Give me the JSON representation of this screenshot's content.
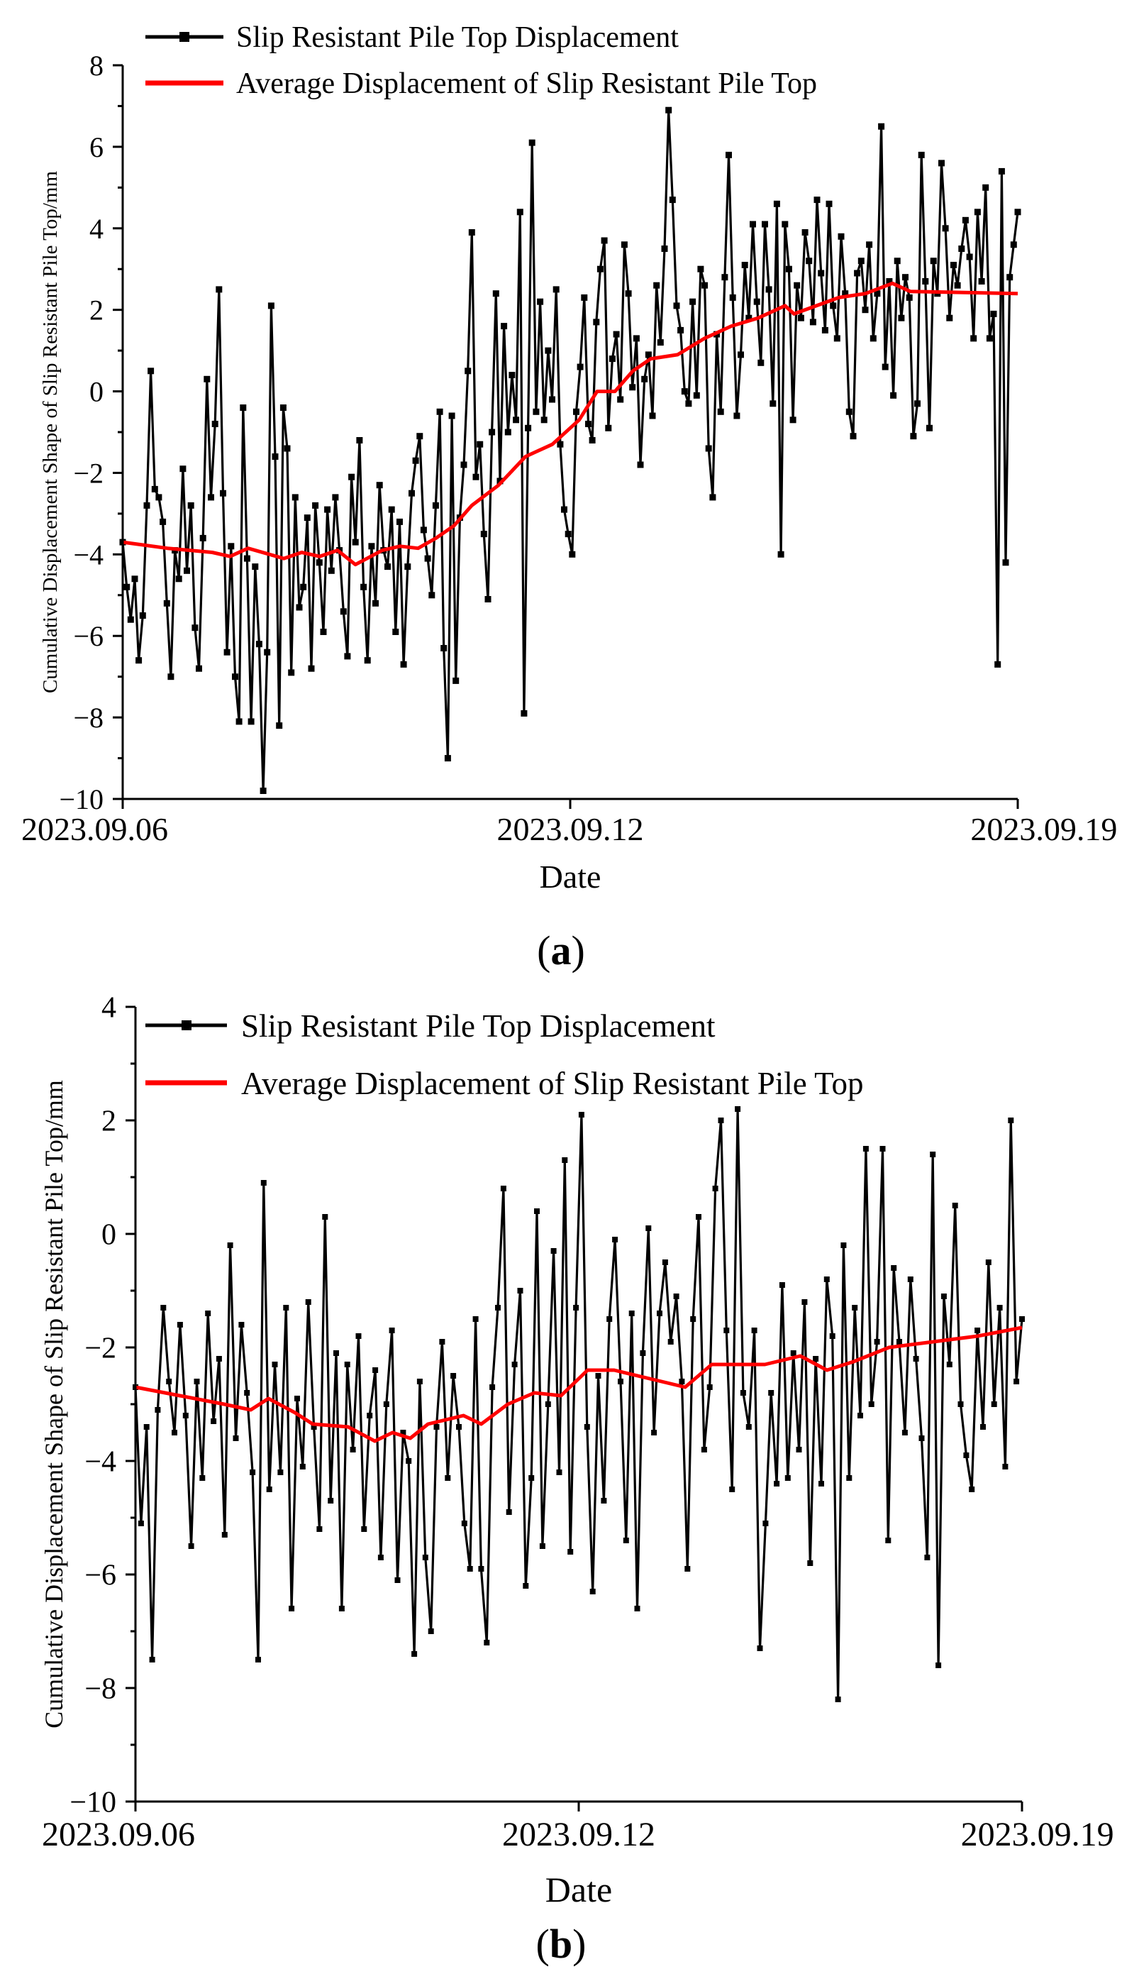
{
  "chart_data": [
    {
      "type": "line",
      "panel_label": "a",
      "title": "",
      "xlabel": "Date",
      "ylabel": "Cumulative Displacement Shape of Slip Resistant Pile Top/mm",
      "x_ticks": [
        "2023.09.06",
        "2023.09.12",
        "2023.09.19"
      ],
      "ylim": [
        -10,
        8
      ],
      "yticks": [
        -10,
        -8,
        -6,
        -4,
        -2,
        0,
        2,
        4,
        6,
        8
      ],
      "legend_location": "top-left",
      "colors": {
        "raw": "#000000",
        "average": "#ff0000"
      },
      "series": [
        {
          "name": "Slip Resistant Pile Top Displacement",
          "marker": "square",
          "values": [
            -3.7,
            -4.8,
            -5.6,
            -4.6,
            -6.6,
            -5.5,
            -2.8,
            0.5,
            -2.4,
            -2.6,
            -3.2,
            -5.2,
            -7.0,
            -3.9,
            -4.6,
            -1.9,
            -4.4,
            -2.8,
            -5.8,
            -6.8,
            -3.6,
            0.3,
            -2.6,
            -0.8,
            2.5,
            -2.5,
            -6.4,
            -3.8,
            -7.0,
            -8.1,
            -0.4,
            -4.1,
            -8.1,
            -4.3,
            -6.2,
            -9.8,
            -6.4,
            2.1,
            -1.6,
            -8.2,
            -0.4,
            -1.4,
            -6.9,
            -2.6,
            -5.3,
            -4.8,
            -3.1,
            -6.8,
            -2.8,
            -4.2,
            -5.9,
            -2.9,
            -4.4,
            -2.6,
            -3.9,
            -5.4,
            -6.5,
            -2.1,
            -3.7,
            -1.2,
            -4.8,
            -6.6,
            -3.8,
            -5.2,
            -2.3,
            -3.9,
            -4.3,
            -2.9,
            -5.9,
            -3.2,
            -6.7,
            -4.3,
            -2.5,
            -1.7,
            -1.1,
            -3.4,
            -4.1,
            -5.0,
            -2.8,
            -0.5,
            -6.3,
            -9.0,
            -0.6,
            -7.1,
            -3.1,
            -1.8,
            0.5,
            3.9,
            -2.1,
            -1.3,
            -3.5,
            -5.1,
            -1.0,
            2.4,
            -2.2,
            1.6,
            -1.0,
            0.4,
            -0.7,
            4.4,
            -7.9,
            -0.9,
            6.1,
            -0.5,
            2.2,
            -0.7,
            1.0,
            -0.2,
            2.5,
            -1.3,
            -2.9,
            -3.5,
            -4.0,
            -0.5,
            0.6,
            2.3,
            -0.8,
            -1.2,
            1.7,
            3.0,
            3.7,
            -0.9,
            0.8,
            1.4,
            -0.2,
            3.6,
            2.4,
            0.1,
            1.3,
            -1.8,
            0.3,
            0.9,
            -0.6,
            2.6,
            1.2,
            3.5,
            6.9,
            4.7,
            2.1,
            1.5,
            0.0,
            -0.3,
            2.2,
            -0.1,
            3.0,
            2.6,
            -1.4,
            -2.6,
            1.4,
            -0.5,
            2.8,
            5.8,
            2.3,
            -0.6,
            0.9,
            3.1,
            1.8,
            4.1,
            2.2,
            0.7,
            4.1,
            2.5,
            -0.3,
            4.6,
            -4.0,
            4.1,
            3.0,
            -0.7,
            2.6,
            1.8,
            3.9,
            3.2,
            1.7,
            4.7,
            2.9,
            1.5,
            4.6,
            2.1,
            1.3,
            3.8,
            2.4,
            -0.5,
            -1.1,
            2.9,
            3.2,
            2.0,
            3.6,
            1.3,
            2.4,
            6.5,
            0.6,
            2.7,
            -0.1,
            3.2,
            1.8,
            2.8,
            2.3,
            -1.1,
            -0.3,
            5.8,
            2.7,
            -0.9,
            3.2,
            2.4,
            5.6,
            4.0,
            1.8,
            3.1,
            2.6,
            3.5,
            4.2,
            3.3,
            1.3,
            4.4,
            2.7,
            5.0,
            1.3,
            1.9,
            -6.7,
            5.4,
            -4.2,
            2.8,
            3.6,
            4.4
          ]
        },
        {
          "name": "Average Displacement of Slip Resistant Pile Top",
          "marker": "none",
          "points": [
            [
              0,
              -3.7
            ],
            [
              0.05,
              -3.85
            ],
            [
              0.1,
              -3.95
            ],
            [
              0.12,
              -4.05
            ],
            [
              0.14,
              -3.85
            ],
            [
              0.18,
              -4.1
            ],
            [
              0.2,
              -3.95
            ],
            [
              0.22,
              -4.05
            ],
            [
              0.24,
              -3.9
            ],
            [
              0.26,
              -4.25
            ],
            [
              0.29,
              -3.9
            ],
            [
              0.31,
              -3.8
            ],
            [
              0.33,
              -3.85
            ],
            [
              0.35,
              -3.6
            ],
            [
              0.37,
              -3.3
            ],
            [
              0.39,
              -2.8
            ],
            [
              0.42,
              -2.3
            ],
            [
              0.45,
              -1.6
            ],
            [
              0.48,
              -1.3
            ],
            [
              0.51,
              -0.7
            ],
            [
              0.53,
              0.0
            ],
            [
              0.55,
              0.0
            ],
            [
              0.57,
              0.5
            ],
            [
              0.59,
              0.8
            ],
            [
              0.62,
              0.9
            ],
            [
              0.65,
              1.3
            ],
            [
              0.68,
              1.6
            ],
            [
              0.71,
              1.8
            ],
            [
              0.74,
              2.1
            ],
            [
              0.75,
              1.9
            ],
            [
              0.8,
              2.3
            ],
            [
              0.83,
              2.4
            ],
            [
              0.86,
              2.65
            ],
            [
              0.88,
              2.45
            ],
            [
              1,
              2.4
            ]
          ]
        }
      ]
    },
    {
      "type": "line",
      "panel_label": "b",
      "title": "",
      "xlabel": "Date",
      "ylabel": "Cumulative Displacement Shape of Slip Resistant Pile Top/mm",
      "x_ticks": [
        "2023.09.06",
        "2023.09.12",
        "2023.09.19"
      ],
      "ylim": [
        -10,
        4
      ],
      "yticks": [
        -10,
        -8,
        -6,
        -4,
        -2,
        0,
        2,
        4
      ],
      "legend_location": "top-left",
      "colors": {
        "raw": "#000000",
        "average": "#ff0000"
      },
      "series": [
        {
          "name": "Slip Resistant Pile Top Displacement",
          "marker": "square",
          "values": [
            -2.7,
            -5.1,
            -3.4,
            -7.5,
            -3.1,
            -1.3,
            -2.6,
            -3.5,
            -1.6,
            -3.2,
            -5.5,
            -2.6,
            -4.3,
            -1.4,
            -3.3,
            -2.2,
            -5.3,
            -0.2,
            -3.6,
            -1.6,
            -2.8,
            -4.2,
            -7.5,
            0.9,
            -4.5,
            -2.3,
            -4.2,
            -1.3,
            -6.6,
            -2.9,
            -4.1,
            -1.2,
            -3.4,
            -5.2,
            0.3,
            -4.7,
            -2.1,
            -6.6,
            -2.3,
            -3.8,
            -1.8,
            -5.2,
            -3.2,
            -2.4,
            -5.7,
            -3.0,
            -1.7,
            -6.1,
            -3.5,
            -4.0,
            -7.4,
            -2.6,
            -5.7,
            -7.0,
            -3.4,
            -1.9,
            -4.3,
            -2.5,
            -3.4,
            -5.1,
            -5.9,
            -1.5,
            -5.9,
            -7.2,
            -2.7,
            -1.3,
            0.8,
            -4.9,
            -2.3,
            -1.0,
            -6.2,
            -4.3,
            0.4,
            -5.5,
            -3.0,
            -0.3,
            -4.2,
            1.3,
            -5.6,
            -1.3,
            2.1,
            -3.4,
            -6.3,
            -2.5,
            -4.7,
            -1.5,
            -0.1,
            -2.6,
            -5.4,
            -1.4,
            -6.6,
            -2.1,
            0.1,
            -3.5,
            -1.4,
            -0.5,
            -1.9,
            -1.1,
            -2.6,
            -5.9,
            -1.5,
            0.3,
            -3.8,
            -2.7,
            0.8,
            2.0,
            -1.7,
            -4.5,
            2.2,
            -2.8,
            -3.4,
            -1.7,
            -7.3,
            -5.1,
            -2.8,
            -4.4,
            -0.9,
            -4.3,
            -2.1,
            -3.8,
            -1.2,
            -5.8,
            -2.2,
            -4.4,
            -0.8,
            -1.8,
            -8.2,
            -0.2,
            -4.3,
            -1.3,
            -3.2,
            1.5,
            -3.0,
            -1.9,
            1.5,
            -5.4,
            -0.6,
            -1.9,
            -3.5,
            -0.8,
            -2.2,
            -3.6,
            -5.7,
            1.4,
            -7.6,
            -1.1,
            -2.3,
            0.5,
            -3.0,
            -3.9,
            -4.5,
            -1.7,
            -3.4,
            -0.5,
            -3.0,
            -1.3,
            -4.1,
            2.0,
            -2.6,
            -1.5
          ]
        },
        {
          "name": "Average Displacement of Slip Resistant Pile Top",
          "marker": "none",
          "points": [
            [
              0,
              -2.7
            ],
            [
              0.05,
              -2.85
            ],
            [
              0.1,
              -3.0
            ],
            [
              0.13,
              -3.1
            ],
            [
              0.15,
              -2.9
            ],
            [
              0.18,
              -3.15
            ],
            [
              0.2,
              -3.35
            ],
            [
              0.24,
              -3.4
            ],
            [
              0.27,
              -3.65
            ],
            [
              0.29,
              -3.5
            ],
            [
              0.31,
              -3.6
            ],
            [
              0.33,
              -3.35
            ],
            [
              0.37,
              -3.2
            ],
            [
              0.39,
              -3.35
            ],
            [
              0.42,
              -3.0
            ],
            [
              0.45,
              -2.8
            ],
            [
              0.48,
              -2.85
            ],
            [
              0.51,
              -2.4
            ],
            [
              0.54,
              -2.4
            ],
            [
              0.58,
              -2.55
            ],
            [
              0.62,
              -2.7
            ],
            [
              0.65,
              -2.3
            ],
            [
              0.68,
              -2.3
            ],
            [
              0.71,
              -2.3
            ],
            [
              0.75,
              -2.15
            ],
            [
              0.78,
              -2.4
            ],
            [
              0.81,
              -2.25
            ],
            [
              0.85,
              -2.0
            ],
            [
              0.9,
              -1.9
            ],
            [
              0.95,
              -1.8
            ],
            [
              1,
              -1.65
            ]
          ]
        }
      ]
    }
  ]
}
